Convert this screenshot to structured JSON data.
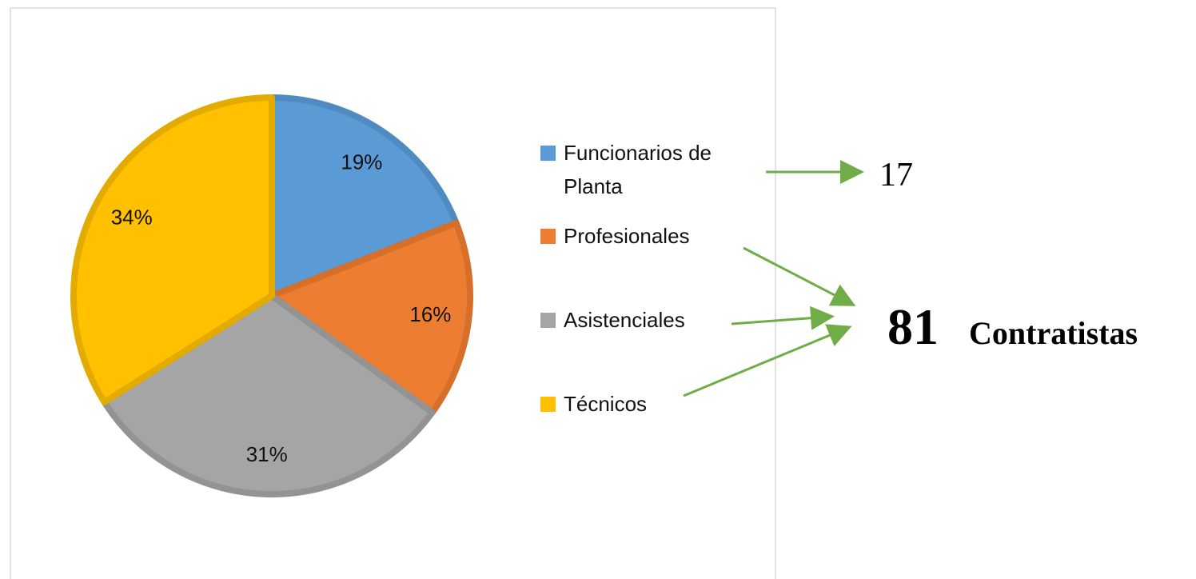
{
  "chart_data": {
    "type": "pie",
    "categories": [
      "Funcionarios de Planta",
      "Profesionales",
      "Asistenciales",
      "Técnicos"
    ],
    "values": [
      19,
      16,
      31,
      34
    ],
    "value_labels": [
      "19%",
      "16%",
      "31%",
      "34%"
    ],
    "colors": [
      "#5b9bd5",
      "#ed7d31",
      "#a5a5a5",
      "#ffc000"
    ],
    "border_colors": [
      "#4f8ac0",
      "#d56f2a",
      "#939393",
      "#e3ab00"
    ],
    "legend": "right",
    "annotations": [
      {
        "text": "17"
      },
      {
        "text": "81"
      },
      {
        "text": "Contratistas"
      }
    ]
  }
}
